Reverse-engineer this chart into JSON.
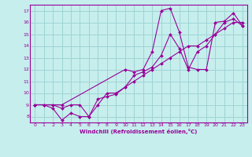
{
  "xlabel": "Windchill (Refroidissement éolien,°C)",
  "xlim": [
    -0.5,
    23.5
  ],
  "ylim": [
    7.5,
    17.5
  ],
  "xticks": [
    0,
    1,
    2,
    3,
    4,
    5,
    6,
    7,
    8,
    9,
    10,
    11,
    12,
    13,
    14,
    15,
    16,
    17,
    18,
    19,
    20,
    21,
    22,
    23
  ],
  "yticks": [
    8,
    9,
    10,
    11,
    12,
    13,
    14,
    15,
    16,
    17
  ],
  "bg_color": "#c6eeed",
  "grid_color": "#9ed4d4",
  "line_color": "#990099",
  "lines": [
    {
      "x": [
        0,
        1,
        2,
        3,
        4,
        5,
        6,
        7,
        8,
        9,
        10,
        11,
        12,
        13,
        14,
        15,
        16,
        17,
        18,
        19,
        20,
        21,
        22,
        23
      ],
      "y": [
        9,
        9,
        9,
        8.7,
        9,
        9,
        8,
        9,
        10,
        10,
        10.5,
        11,
        11.5,
        12,
        12.5,
        13,
        13.5,
        14,
        14,
        14.5,
        15,
        15.5,
        16,
        16
      ]
    },
    {
      "x": [
        0,
        1,
        2,
        3,
        4,
        5,
        6,
        7,
        8,
        9,
        10,
        11,
        12,
        13,
        14,
        15,
        16,
        17,
        18,
        19,
        20,
        21,
        22,
        23
      ],
      "y": [
        9,
        9,
        8.7,
        7.7,
        8.3,
        8,
        8,
        9.5,
        9.7,
        9.9,
        10.5,
        11.5,
        11.8,
        12.2,
        13.2,
        15.0,
        13.8,
        12.0,
        13.5,
        14,
        15,
        16,
        16.3,
        15.7
      ]
    },
    {
      "x": [
        0,
        2,
        3,
        10,
        11,
        12,
        13,
        14,
        15,
        16,
        17,
        18,
        19,
        20,
        21,
        22,
        23
      ],
      "y": [
        9,
        9,
        9,
        12,
        11.8,
        12,
        13.5,
        17,
        17.2,
        15.2,
        12.2,
        12,
        12,
        16,
        16.1,
        16.8,
        15.7
      ]
    }
  ]
}
